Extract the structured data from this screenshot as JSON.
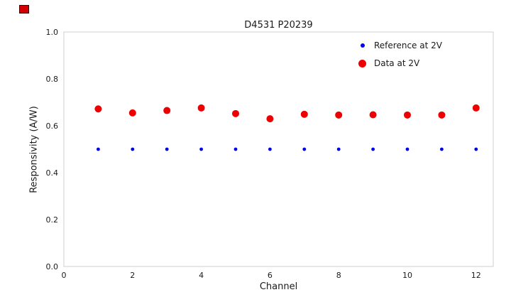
{
  "figure": {
    "title": "D4531 P20239",
    "xlabel": "Channel",
    "ylabel": "Responsivity (A/W)"
  },
  "chart_data": {
    "type": "scatter",
    "title": "D4531 P20239",
    "xlabel": "Channel",
    "ylabel": "Responsivity (A/W)",
    "xlim": [
      0,
      12.5
    ],
    "ylim": [
      0,
      1.0
    ],
    "xtick_values": [
      0,
      2,
      4,
      6,
      8,
      10,
      12
    ],
    "xtick_labels": [
      "0",
      "2",
      "4",
      "6",
      "8",
      "10",
      "12"
    ],
    "ytick_values": [
      0.0,
      0.2,
      0.4,
      0.6,
      0.8,
      1.0
    ],
    "ytick_labels": [
      "0.0",
      "0.2",
      "0.4",
      "0.6",
      "0.8",
      "1.0"
    ],
    "grid": false,
    "legend_position": "upper right",
    "x": [
      1,
      2,
      3,
      4,
      5,
      6,
      7,
      8,
      9,
      10,
      11,
      12
    ],
    "series": [
      {
        "name": "Reference at 2V",
        "color": "#0000ee",
        "marker_radius": 2.4,
        "values": [
          0.5,
          0.5,
          0.5,
          0.5,
          0.5,
          0.5,
          0.5,
          0.5,
          0.5,
          0.5,
          0.5,
          0.5
        ]
      },
      {
        "name": "Data at 2V",
        "color": "#ee0000",
        "marker_radius": 5,
        "values": [
          0.672,
          0.655,
          0.665,
          0.676,
          0.652,
          0.63,
          0.649,
          0.646,
          0.647,
          0.646,
          0.646,
          0.676
        ]
      }
    ],
    "plot_border_color": "#cfcfcf"
  }
}
